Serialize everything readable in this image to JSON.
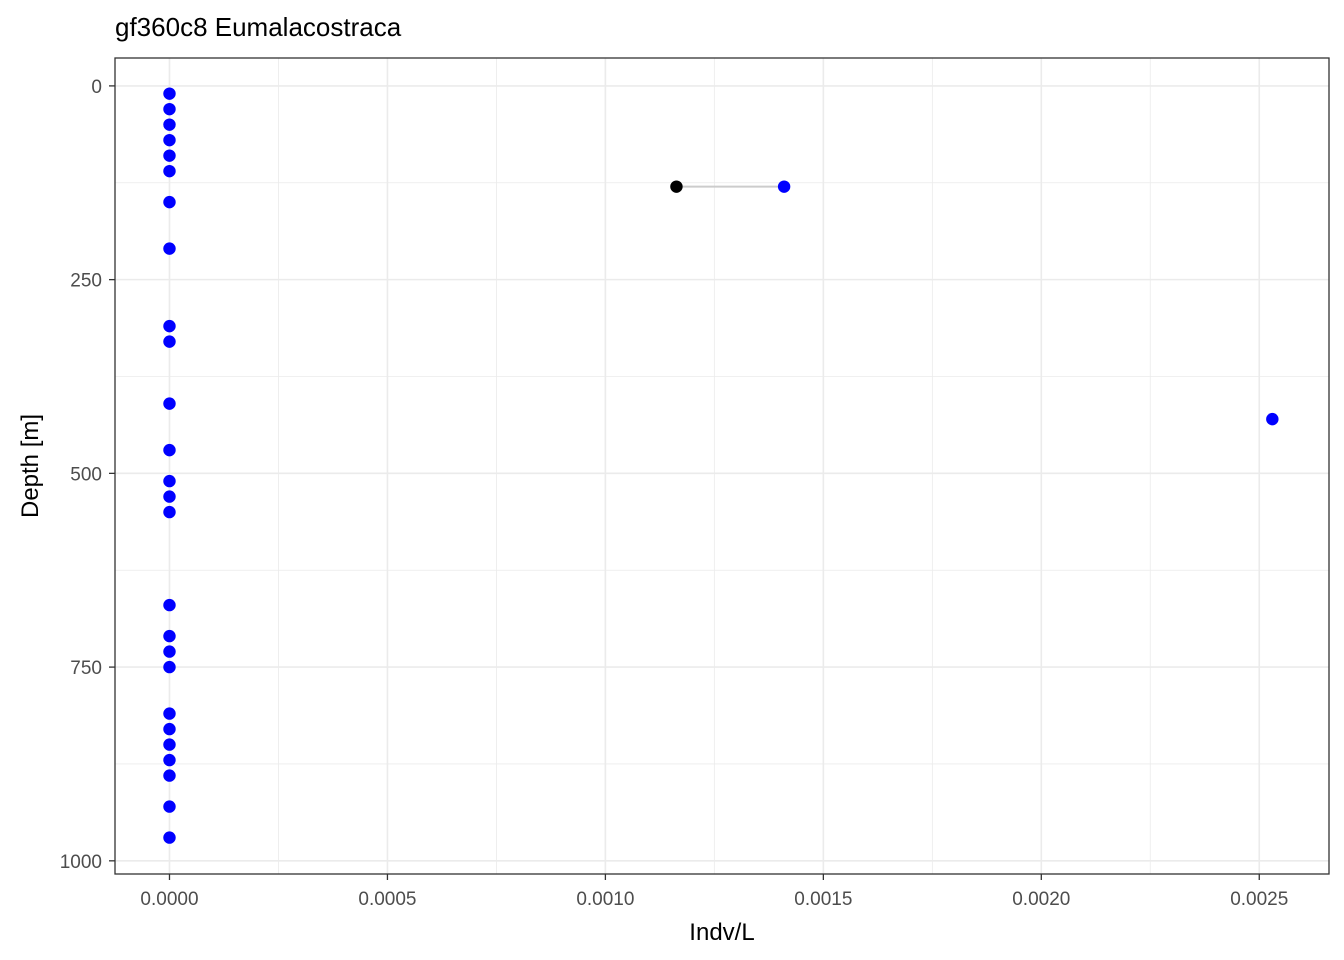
{
  "chart_data": {
    "type": "scatter",
    "title": "gf360c8 Eumalacostraca",
    "xlabel": "Indv/L",
    "ylabel": "Depth [m]",
    "xlim": [
      -0.000125,
      0.00266
    ],
    "ylim": [
      1017,
      -36
    ],
    "y_reversed": true,
    "grid": true,
    "x_ticks": [
      0.0,
      0.0005,
      0.001,
      0.0015,
      0.002,
      0.0025
    ],
    "x_tick_labels": [
      "0.0000",
      "0.0005",
      "0.0010",
      "0.0015",
      "0.0020",
      "0.0025"
    ],
    "y_ticks": [
      0,
      250,
      500,
      750,
      1000
    ],
    "y_tick_labels": [
      "0",
      "250",
      "500",
      "750",
      "1000"
    ],
    "colors": {
      "points": "#0000ff",
      "highlight": "#000000",
      "segment": "#cccccc"
    },
    "series": [
      {
        "color": "#0000ff",
        "points": [
          {
            "x": 0,
            "y": 10
          },
          {
            "x": 0,
            "y": 30
          },
          {
            "x": 0,
            "y": 50
          },
          {
            "x": 0,
            "y": 70
          },
          {
            "x": 0,
            "y": 90
          },
          {
            "x": 0,
            "y": 110
          },
          {
            "x": 0,
            "y": 150
          },
          {
            "x": 0,
            "y": 210
          },
          {
            "x": 0,
            "y": 310
          },
          {
            "x": 0,
            "y": 330
          },
          {
            "x": 0,
            "y": 410
          },
          {
            "x": 0,
            "y": 470
          },
          {
            "x": 0,
            "y": 510
          },
          {
            "x": 0,
            "y": 530
          },
          {
            "x": 0,
            "y": 550
          },
          {
            "x": 0,
            "y": 670
          },
          {
            "x": 0,
            "y": 710
          },
          {
            "x": 0,
            "y": 730
          },
          {
            "x": 0,
            "y": 750
          },
          {
            "x": 0,
            "y": 810
          },
          {
            "x": 0,
            "y": 830
          },
          {
            "x": 0,
            "y": 850
          },
          {
            "x": 0,
            "y": 870
          },
          {
            "x": 0,
            "y": 890
          },
          {
            "x": 0,
            "y": 930
          },
          {
            "x": 0,
            "y": 970
          },
          {
            "x": 0.00141,
            "y": 130
          },
          {
            "x": 0.00253,
            "y": 430
          }
        ]
      },
      {
        "color": "#000000",
        "points": [
          {
            "x": 0.001163,
            "y": 130
          }
        ]
      }
    ],
    "segments": [
      {
        "x1": 0.001163,
        "y1": 130,
        "x2": 0.00141,
        "y2": 130
      }
    ]
  }
}
